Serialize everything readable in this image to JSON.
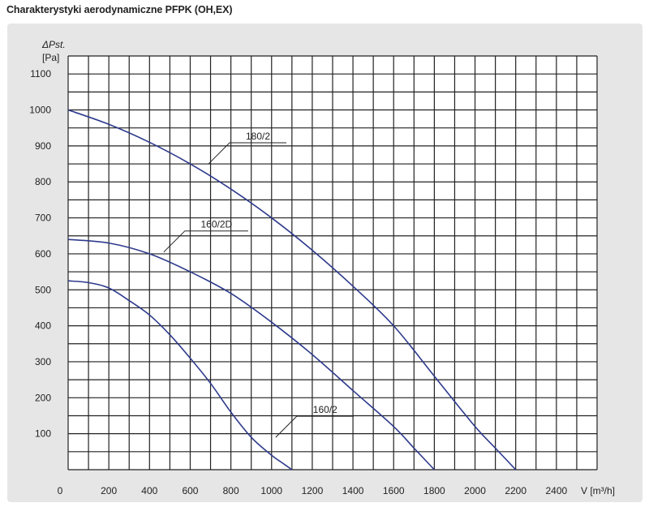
{
  "title": "Charakterystyki aerodynamiczne PFPK  (OH,EX)",
  "chart_data": {
    "type": "line",
    "title": "Charakterystyki aerodynamiczne PFPK  (OH,EX)",
    "ylabel_line1": "ΔPst.",
    "ylabel_line2": "[Pa]",
    "xlabel": "V [m³/h]",
    "xlim": [
      0,
      2600
    ],
    "ylim": [
      0,
      1100
    ],
    "x_ticks": [
      0,
      200,
      400,
      600,
      800,
      1000,
      1200,
      1400,
      1600,
      1800,
      2000,
      2200,
      2400
    ],
    "y_ticks": [
      100,
      200,
      300,
      400,
      500,
      600,
      700,
      800,
      900,
      1000,
      1100
    ],
    "grid": true,
    "series": [
      {
        "name": "180/2",
        "color": "#2e3a8c",
        "x": [
          0,
          200,
          400,
          600,
          800,
          1000,
          1200,
          1400,
          1600,
          1800,
          2000,
          2100,
          2200
        ],
        "y": [
          1000,
          960,
          910,
          850,
          780,
          700,
          610,
          510,
          400,
          260,
          120,
          60,
          0
        ]
      },
      {
        "name": "160/2D",
        "color": "#2e3a8c",
        "x": [
          0,
          200,
          400,
          600,
          800,
          1000,
          1200,
          1400,
          1600,
          1700,
          1800
        ],
        "y": [
          640,
          630,
          600,
          550,
          490,
          410,
          320,
          220,
          120,
          60,
          0
        ]
      },
      {
        "name": "160/2",
        "color": "#2e3a8c",
        "x": [
          0,
          100,
          200,
          300,
          400,
          500,
          600,
          700,
          800,
          900,
          1000,
          1050,
          1100
        ],
        "y": [
          525,
          520,
          505,
          470,
          430,
          375,
          310,
          240,
          160,
          90,
          40,
          20,
          0
        ]
      }
    ],
    "labels": [
      {
        "text": "180/2",
        "series": "180/2",
        "at_x": 690,
        "at_y": 850
      },
      {
        "text": "160/2D",
        "series": "160/2D",
        "at_x": 470,
        "at_y": 605
      },
      {
        "text": "160/2",
        "series": "160/2",
        "at_x": 1020,
        "at_y": 90
      }
    ]
  }
}
